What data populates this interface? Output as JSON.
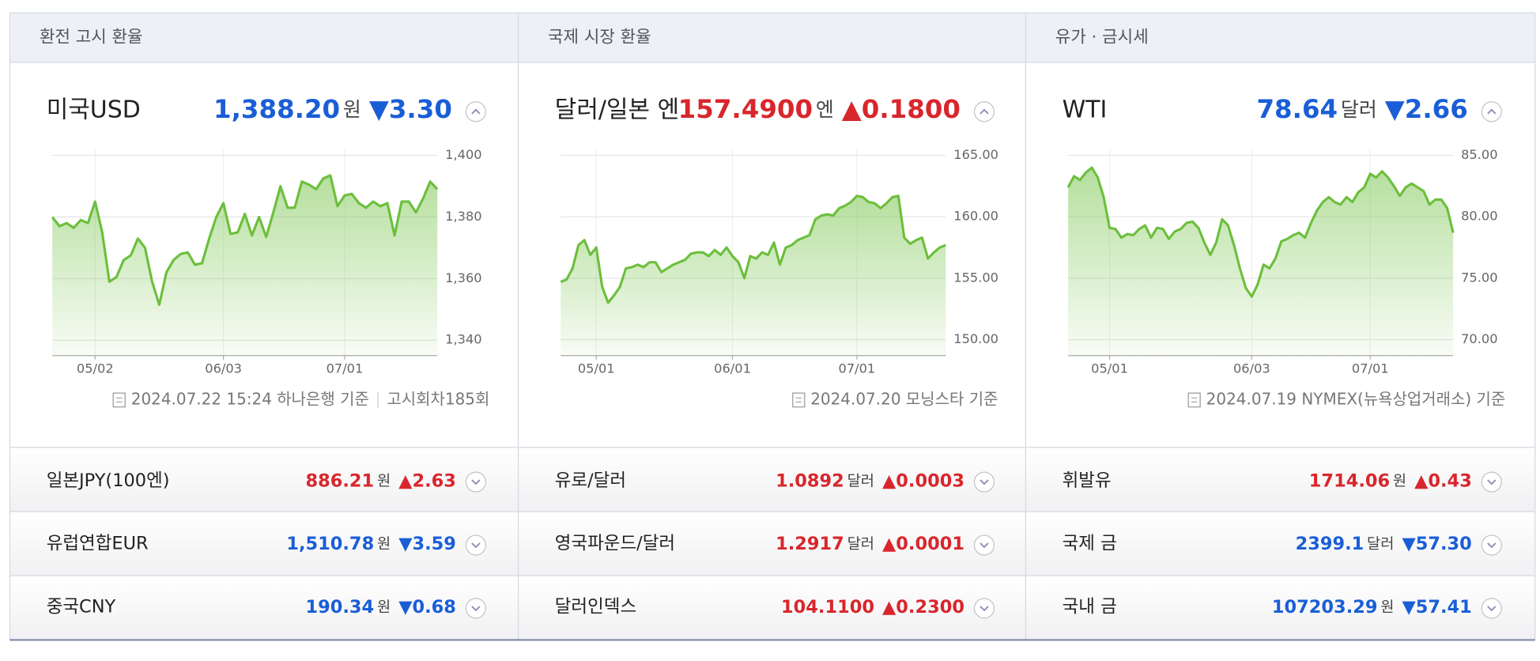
{
  "panels": [
    {
      "header": "환전 고시 환율",
      "main": {
        "name": "미국USD",
        "value": "1,388.20",
        "unit": "원",
        "change": "▼3.30",
        "color": "#1a5ed6"
      },
      "note": [
        "2024.07.22 15:24 하나은행 기준",
        "고시회차185회"
      ],
      "rows": [
        {
          "name": "일본JPY(100엔)",
          "value": "886.21",
          "unit": "원",
          "change": "▲2.63",
          "color": "#d8262c"
        },
        {
          "name": "유럽연합EUR",
          "value": "1,510.78",
          "unit": "원",
          "change": "▼3.59",
          "color": "#1a5ed6"
        },
        {
          "name": "중국CNY",
          "value": "190.34",
          "unit": "원",
          "change": "▼0.68",
          "color": "#1a5ed6"
        }
      ]
    },
    {
      "header": "국제 시장 환율",
      "main": {
        "name": "달러/일본 엔",
        "value": "157.4900",
        "unit": "엔",
        "change": "▲0.1800",
        "color": "#d8262c"
      },
      "note": [
        "2024.07.20 모닝스타 기준"
      ],
      "rows": [
        {
          "name": "유로/달러",
          "value": "1.0892",
          "unit": "달러",
          "change": "▲0.0003",
          "color": "#d8262c"
        },
        {
          "name": "영국파운드/달러",
          "value": "1.2917",
          "unit": "달러",
          "change": "▲0.0001",
          "color": "#d8262c"
        },
        {
          "name": "달러인덱스",
          "value": "104.1100",
          "change": "▲0.2300",
          "color": "#d8262c"
        }
      ]
    },
    {
      "header": "유가 · 금시세",
      "main": {
        "name": "WTI",
        "value": "78.64",
        "unit": "달러",
        "change": "▼2.66",
        "color": "#1a5ed6"
      },
      "note": [
        "2024.07.19 NYMEX(뉴욕상업거래소) 기준"
      ],
      "rows": [
        {
          "name": "휘발유",
          "value": "1714.06",
          "unit": "원",
          "change": "▲0.43",
          "color": "#d8262c"
        },
        {
          "name": "국제 금",
          "value": "2399.1",
          "unit": "달러",
          "change": "▼57.30",
          "color": "#1a5ed6"
        },
        {
          "name": "국내 금",
          "value": "107203.29",
          "unit": "원",
          "change": "▼57.41",
          "color": "#1a5ed6"
        }
      ]
    }
  ],
  "chart_data": [
    {
      "type": "line",
      "color": "#6cbf3c",
      "grid": true,
      "ylim": [
        1335,
        1402
      ],
      "yticks": [
        {
          "value": 1340,
          "label": "1,340"
        },
        {
          "value": 1360,
          "label": "1,360"
        },
        {
          "value": 1380,
          "label": "1,380"
        },
        {
          "value": 1400,
          "label": "1,400"
        }
      ],
      "categories": [
        null,
        null,
        null,
        null,
        null,
        null,
        "05/02",
        null,
        null,
        null,
        null,
        null,
        null,
        null,
        null,
        null,
        null,
        null,
        null,
        null,
        null,
        null,
        null,
        null,
        "06/03",
        null,
        null,
        null,
        null,
        null,
        null,
        null,
        null,
        null,
        null,
        null,
        null,
        null,
        null,
        null,
        null,
        "07/01",
        null,
        null,
        null,
        null,
        null,
        null,
        null,
        null,
        null,
        null,
        null,
        null,
        null
      ],
      "values": [
        1380,
        1377,
        1378,
        1376.5,
        1379,
        1378,
        1385,
        1375,
        1359,
        1360.5,
        1366,
        1367.5,
        1373,
        1370,
        1359,
        1351.5,
        1362,
        1366,
        1368,
        1368.5,
        1364.5,
        1365,
        1373,
        1380,
        1384.5,
        1374.5,
        1375,
        1381,
        1374,
        1380,
        1373.5,
        1381.5,
        1390,
        1383,
        1383,
        1391.5,
        1390.5,
        1389,
        1392.5,
        1393.5,
        1383.5,
        1387,
        1387.5,
        1384.5,
        1383,
        1385,
        1383.5,
        1384.5,
        1374,
        1385,
        1385,
        1381.5,
        1386,
        1391.5,
        1389
      ]
    },
    {
      "type": "line",
      "color": "#6cbf3c",
      "grid": true,
      "ylim": [
        148.7,
        165.5
      ],
      "yticks": [
        {
          "value": 150,
          "label": "150.00"
        },
        {
          "value": 155,
          "label": "155.00"
        },
        {
          "value": 160,
          "label": "160.00"
        },
        {
          "value": 165,
          "label": "165.00"
        }
      ],
      "categories": [
        null,
        null,
        null,
        null,
        null,
        null,
        "05/01",
        null,
        null,
        null,
        null,
        null,
        null,
        null,
        null,
        null,
        null,
        null,
        null,
        null,
        null,
        null,
        null,
        null,
        null,
        null,
        null,
        null,
        null,
        "06/01",
        null,
        null,
        null,
        null,
        null,
        null,
        null,
        null,
        null,
        null,
        null,
        null,
        null,
        null,
        null,
        null,
        null,
        null,
        null,
        null,
        "07/01",
        null,
        null,
        null,
        null,
        null,
        null,
        null,
        null,
        null,
        null,
        null,
        null,
        null,
        null,
        null
      ],
      "values": [
        154.7,
        154.9,
        155.8,
        157.7,
        158.1,
        156.9,
        157.5,
        154.3,
        153,
        153.6,
        154.3,
        155.8,
        155.9,
        156.1,
        155.9,
        156.3,
        156.3,
        155.5,
        155.8,
        156.1,
        156.3,
        156.5,
        157,
        157.1,
        157.1,
        156.8,
        157.3,
        156.9,
        157.5,
        156.8,
        156.3,
        155,
        156.8,
        156.6,
        157.1,
        156.9,
        157.9,
        156.1,
        157.5,
        157.7,
        158.1,
        158.3,
        158.5,
        159.8,
        160.1,
        160.2,
        160.1,
        160.7,
        160.9,
        161.2,
        161.7,
        161.6,
        161.2,
        161.1,
        160.7,
        161.1,
        161.6,
        161.7,
        158.3,
        157.8,
        158.1,
        158.3,
        156.6,
        157.1,
        157.5,
        157.7
      ]
    },
    {
      "type": "line",
      "color": "#6cbf3c",
      "grid": true,
      "ylim": [
        68.7,
        85.5
      ],
      "yticks": [
        {
          "value": 70,
          "label": "70.00"
        },
        {
          "value": 75,
          "label": "75.00"
        },
        {
          "value": 80,
          "label": "80.00"
        },
        {
          "value": 85,
          "label": "85.00"
        }
      ],
      "categories": [
        null,
        null,
        null,
        null,
        null,
        null,
        null,
        "05/01",
        null,
        null,
        null,
        null,
        null,
        null,
        null,
        null,
        null,
        null,
        null,
        null,
        null,
        null,
        null,
        null,
        null,
        null,
        null,
        null,
        null,
        null,
        null,
        "06/03",
        null,
        null,
        null,
        null,
        null,
        null,
        null,
        null,
        null,
        null,
        null,
        null,
        null,
        null,
        null,
        null,
        null,
        null,
        null,
        "07/01",
        null,
        null,
        null,
        null,
        null,
        null,
        null,
        null,
        null,
        null,
        null,
        null,
        null,
        null
      ],
      "values": [
        82.4,
        83.3,
        83,
        83.6,
        84,
        83.2,
        81.6,
        79.1,
        79,
        78.3,
        78.6,
        78.5,
        79,
        79.3,
        78.3,
        79.1,
        79,
        78.2,
        78.8,
        79,
        79.5,
        79.6,
        79.1,
        77.9,
        76.9,
        77.9,
        79.8,
        79.3,
        77.7,
        75.8,
        74.2,
        73.5,
        74.5,
        76.1,
        75.8,
        76.6,
        78,
        78.2,
        78.5,
        78.7,
        78.3,
        79.5,
        80.5,
        81.2,
        81.6,
        81.2,
        81,
        81.6,
        81.2,
        82,
        82.4,
        83.5,
        83.2,
        83.7,
        83.2,
        82.5,
        81.7,
        82.4,
        82.7,
        82.4,
        82.1,
        81,
        81.4,
        81.4,
        80.7,
        78.7
      ]
    }
  ]
}
